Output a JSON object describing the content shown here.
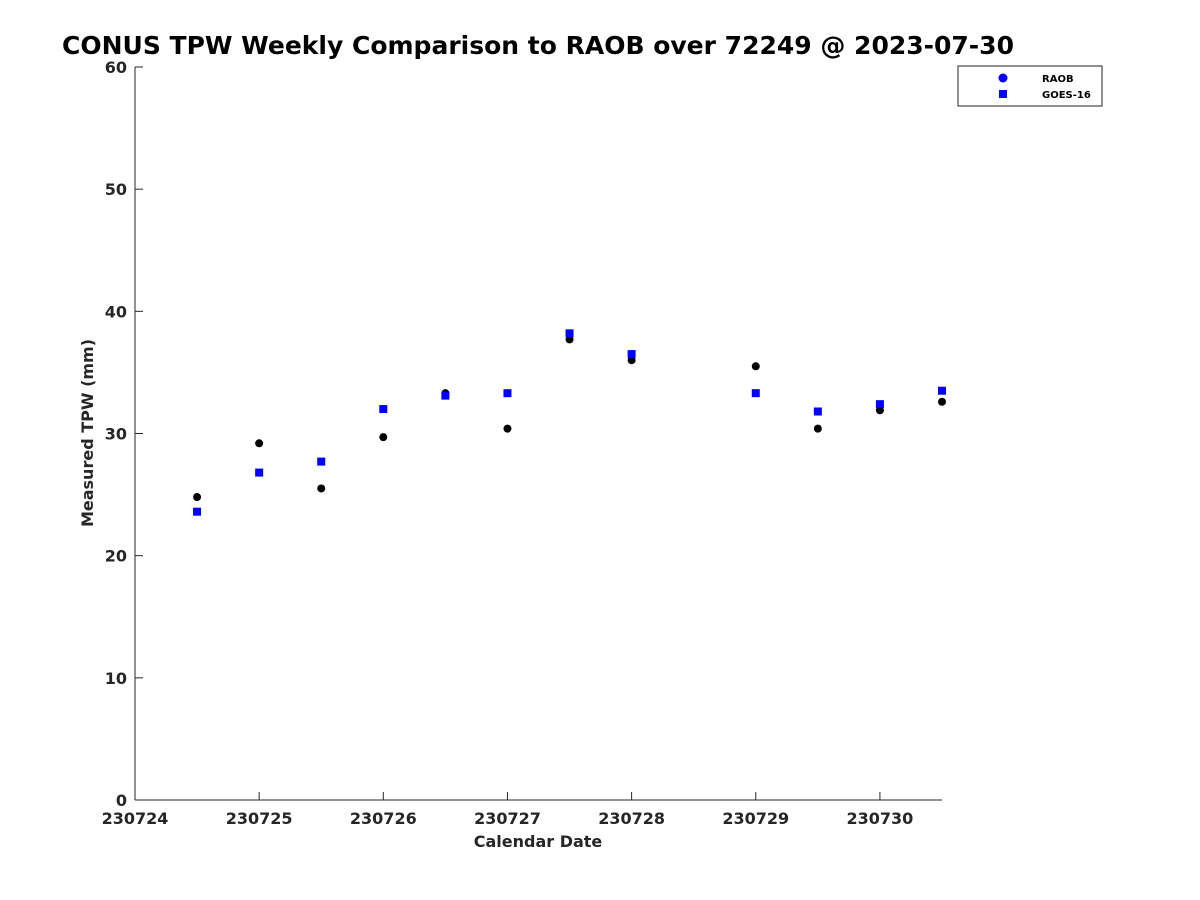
{
  "chart_data": {
    "type": "scatter",
    "title": "CONUS TPW Weekly Comparison to RAOB over 72249 @ 2023-07-30",
    "xlabel": "Calendar Date",
    "ylabel": "Measured TPW (mm)",
    "xlim": [
      0,
      6.5
    ],
    "ylim": [
      0,
      60
    ],
    "x_ticks": [
      0,
      1,
      2,
      3,
      4,
      5,
      6
    ],
    "x_tick_labels": [
      "230724",
      "230725",
      "230726",
      "230727",
      "230728",
      "230729",
      "230730"
    ],
    "y_ticks": [
      0,
      10,
      20,
      30,
      40,
      50,
      60
    ],
    "y_tick_labels": [
      "0",
      "10",
      "20",
      "30",
      "40",
      "50",
      "60"
    ],
    "grid": false,
    "legend_position": "top-right",
    "series": [
      {
        "name": "RAOB",
        "marker": "circle",
        "color": "#000000",
        "legend_color": "#0000ff",
        "points": [
          {
            "x": 0.5,
            "y": 24.8
          },
          {
            "x": 1.0,
            "y": 29.2
          },
          {
            "x": 1.5,
            "y": 25.5
          },
          {
            "x": 2.0,
            "y": 29.7
          },
          {
            "x": 2.5,
            "y": 33.3
          },
          {
            "x": 3.0,
            "y": 30.4
          },
          {
            "x": 3.5,
            "y": 37.7
          },
          {
            "x": 4.0,
            "y": 36.0
          },
          {
            "x": 5.0,
            "y": 35.5
          },
          {
            "x": 5.5,
            "y": 30.4
          },
          {
            "x": 6.0,
            "y": 31.9
          },
          {
            "x": 6.5,
            "y": 32.6
          }
        ]
      },
      {
        "name": "GOES-16",
        "marker": "square",
        "color": "#0000ff",
        "legend_color": "#0000ff",
        "points": [
          {
            "x": 0.5,
            "y": 23.6
          },
          {
            "x": 1.0,
            "y": 26.8
          },
          {
            "x": 1.5,
            "y": 27.7
          },
          {
            "x": 2.0,
            "y": 32.0
          },
          {
            "x": 2.5,
            "y": 33.1
          },
          {
            "x": 3.0,
            "y": 33.3
          },
          {
            "x": 3.5,
            "y": 38.2
          },
          {
            "x": 4.0,
            "y": 36.5
          },
          {
            "x": 5.0,
            "y": 33.3
          },
          {
            "x": 5.5,
            "y": 31.8
          },
          {
            "x": 6.0,
            "y": 32.4
          },
          {
            "x": 6.5,
            "y": 33.5
          }
        ]
      }
    ]
  }
}
